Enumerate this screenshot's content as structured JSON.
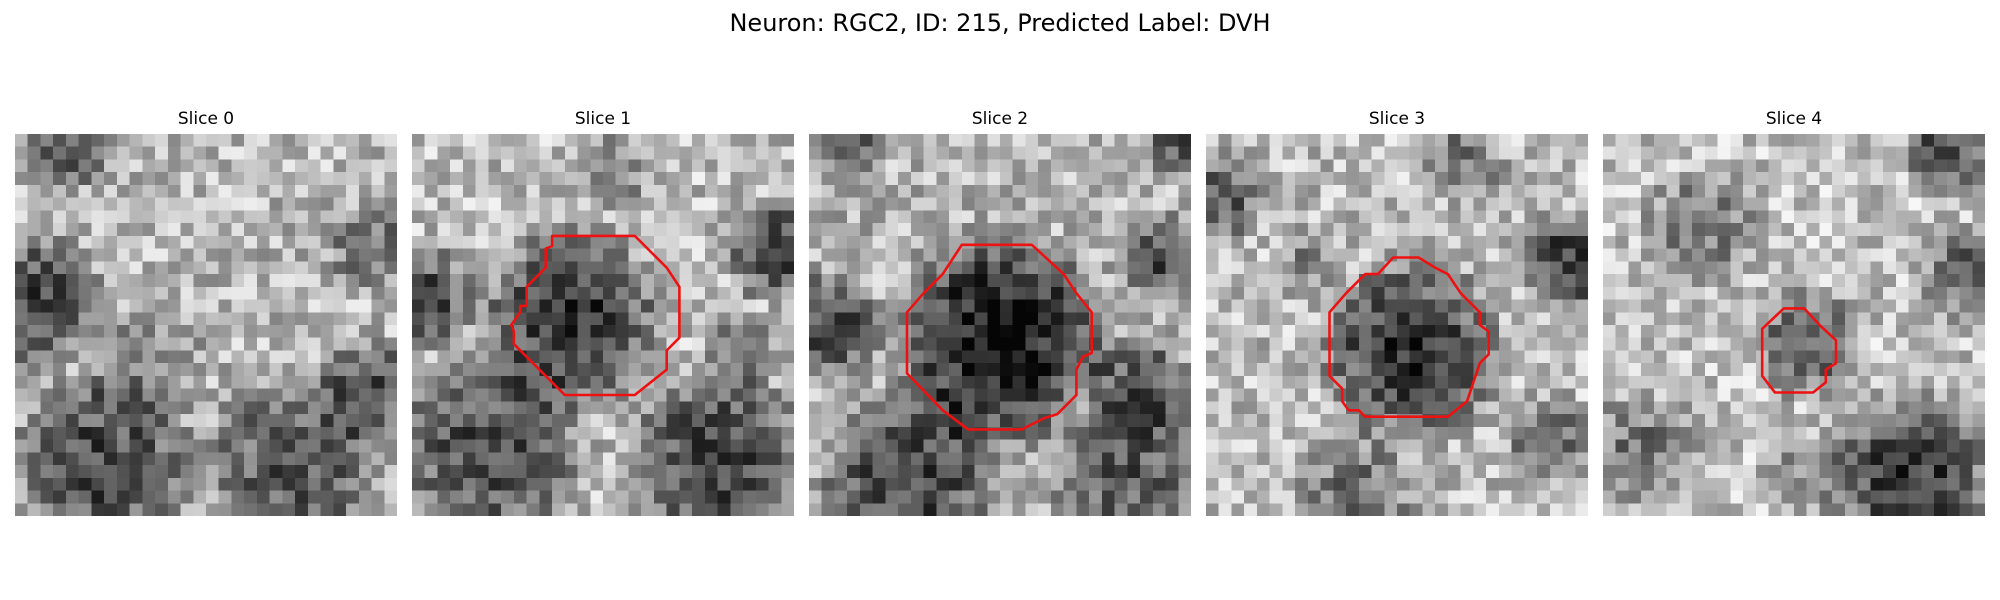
{
  "figure": {
    "title": "Neuron: RGC2, ID: 215, Predicted Label: DVH"
  },
  "colors": {
    "background": "#ffffff",
    "contour": "#ee1111"
  },
  "slices": [
    {
      "title": "Slice 0",
      "has_contour": false
    },
    {
      "title": "Slice 1",
      "has_contour": true
    },
    {
      "title": "Slice 2",
      "has_contour": true
    },
    {
      "title": "Slice 3",
      "has_contour": true
    },
    {
      "title": "Slice 4",
      "has_contour": true
    }
  ]
}
